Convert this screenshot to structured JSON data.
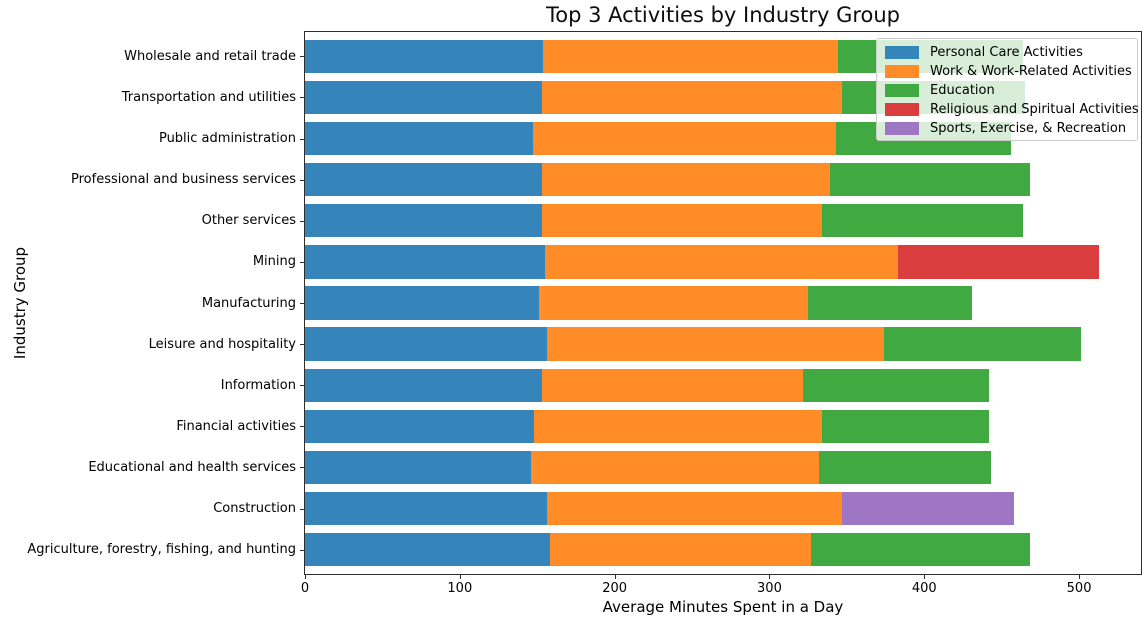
{
  "chart_data": {
    "type": "bar",
    "orientation": "horizontal",
    "stacked": true,
    "title": "Top 3 Activities by Industry Group",
    "xlabel": "Average Minutes Spent in a Day",
    "ylabel": "Industry Group",
    "xlim": [
      0,
      540
    ],
    "xticks": [
      0,
      100,
      200,
      300,
      400,
      500
    ],
    "grid": false,
    "legend_position": "upper right",
    "series": [
      {
        "name": "Personal Care Activities",
        "color": "#3585bb"
      },
      {
        "name": "Work & Work-Related Activities",
        "color": "#ff8c26"
      },
      {
        "name": "Education",
        "color": "#41a941"
      },
      {
        "name": "Religious and Spiritual Activities",
        "color": "#da3d3d"
      },
      {
        "name": "Sports, Exercise, & Recreation",
        "color": "#9f76c4"
      }
    ],
    "categories": [
      "Wholesale and retail trade",
      "Transportation and utilities",
      "Public administration",
      "Professional and business services",
      "Other services",
      "Mining",
      "Manufacturing",
      "Leisure and hospitality",
      "Information",
      "Financial activities",
      "Educational and health services",
      "Construction",
      "Agriculture, forestry, fishing, and hunting"
    ],
    "rows": [
      {
        "category": "Wholesale and retail trade",
        "segments": [
          {
            "series": "Personal Care Activities",
            "value": 154
          },
          {
            "series": "Work & Work-Related Activities",
            "value": 190
          },
          {
            "series": "Education",
            "value": 120
          }
        ]
      },
      {
        "category": "Transportation and utilities",
        "segments": [
          {
            "series": "Personal Care Activities",
            "value": 153
          },
          {
            "series": "Work & Work-Related Activities",
            "value": 194
          },
          {
            "series": "Education",
            "value": 118
          }
        ]
      },
      {
        "category": "Public administration",
        "segments": [
          {
            "series": "Personal Care Activities",
            "value": 147
          },
          {
            "series": "Work & Work-Related Activities",
            "value": 196
          },
          {
            "series": "Education",
            "value": 113
          }
        ]
      },
      {
        "category": "Professional and business services",
        "segments": [
          {
            "series": "Personal Care Activities",
            "value": 153
          },
          {
            "series": "Work & Work-Related Activities",
            "value": 186
          },
          {
            "series": "Education",
            "value": 129
          }
        ]
      },
      {
        "category": "Other services",
        "segments": [
          {
            "series": "Personal Care Activities",
            "value": 153
          },
          {
            "series": "Work & Work-Related Activities",
            "value": 181
          },
          {
            "series": "Education",
            "value": 130
          }
        ]
      },
      {
        "category": "Mining",
        "segments": [
          {
            "series": "Personal Care Activities",
            "value": 155
          },
          {
            "series": "Work & Work-Related Activities",
            "value": 228
          },
          {
            "series": "Religious and Spiritual Activities",
            "value": 130
          }
        ]
      },
      {
        "category": "Manufacturing",
        "segments": [
          {
            "series": "Personal Care Activities",
            "value": 151
          },
          {
            "series": "Work & Work-Related Activities",
            "value": 174
          },
          {
            "series": "Education",
            "value": 106
          }
        ]
      },
      {
        "category": "Leisure and hospitality",
        "segments": [
          {
            "series": "Personal Care Activities",
            "value": 156
          },
          {
            "series": "Work & Work-Related Activities",
            "value": 218
          },
          {
            "series": "Education",
            "value": 127
          }
        ]
      },
      {
        "category": "Information",
        "segments": [
          {
            "series": "Personal Care Activities",
            "value": 153
          },
          {
            "series": "Work & Work-Related Activities",
            "value": 169
          },
          {
            "series": "Education",
            "value": 120
          }
        ]
      },
      {
        "category": "Financial activities",
        "segments": [
          {
            "series": "Personal Care Activities",
            "value": 148
          },
          {
            "series": "Work & Work-Related Activities",
            "value": 186
          },
          {
            "series": "Education",
            "value": 108
          }
        ]
      },
      {
        "category": "Educational and health services",
        "segments": [
          {
            "series": "Personal Care Activities",
            "value": 146
          },
          {
            "series": "Work & Work-Related Activities",
            "value": 186
          },
          {
            "series": "Education",
            "value": 111
          }
        ]
      },
      {
        "category": "Construction",
        "segments": [
          {
            "series": "Personal Care Activities",
            "value": 156
          },
          {
            "series": "Work & Work-Related Activities",
            "value": 191
          },
          {
            "series": "Sports, Exercise, & Recreation",
            "value": 111
          }
        ]
      },
      {
        "category": "Agriculture, forestry, fishing, and hunting",
        "segments": [
          {
            "series": "Personal Care Activities",
            "value": 158
          },
          {
            "series": "Work & Work-Related Activities",
            "value": 169
          },
          {
            "series": "Education",
            "value": 141
          }
        ]
      }
    ]
  }
}
